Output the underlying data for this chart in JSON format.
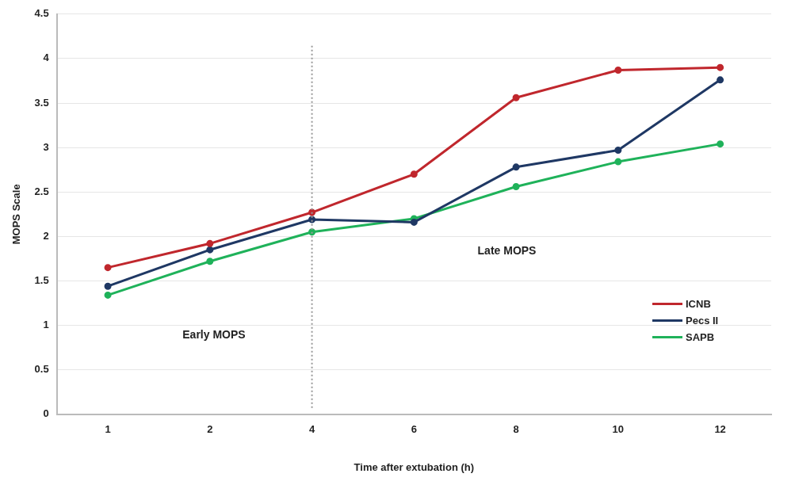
{
  "chart_data": {
    "type": "line",
    "xlabel": "Time after extubation (h)",
    "ylabel": "MOPS Scale",
    "categories": [
      "1",
      "2",
      "4",
      "6",
      "8",
      "10",
      "12"
    ],
    "series": [
      {
        "name": "ICNB",
        "color": "#c0272d",
        "values": [
          1.65,
          1.92,
          2.27,
          2.7,
          3.56,
          3.87,
          3.9
        ]
      },
      {
        "name": "Pecs II",
        "color": "#1f3864",
        "values": [
          1.44,
          1.85,
          2.19,
          2.16,
          2.78,
          2.97,
          3.76
        ]
      },
      {
        "name": "SAPB",
        "color": "#1fb25a",
        "values": [
          1.34,
          1.72,
          2.05,
          2.2,
          2.56,
          2.84,
          3.04
        ]
      }
    ],
    "ylim": [
      0,
      4.5
    ],
    "yticks": [
      0,
      0.5,
      1,
      1.5,
      2,
      2.5,
      3,
      3.5,
      4,
      4.5
    ],
    "grid": "y",
    "legend": "bottom right",
    "marker": "circle",
    "line_style": "solid",
    "ref_lines": [
      {
        "axis": "x",
        "value": "4",
        "color": "#999999",
        "line_style": "dotted"
      }
    ],
    "annotations": [
      "Early MOPS",
      "Late MOPS"
    ]
  }
}
